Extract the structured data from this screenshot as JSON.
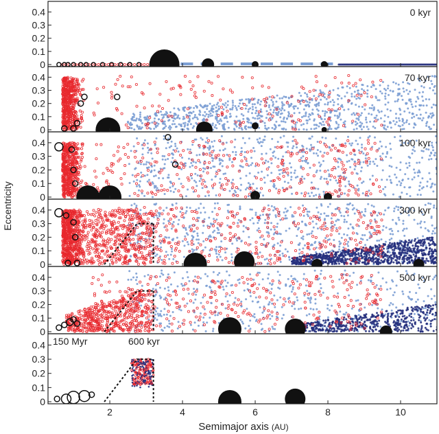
{
  "chart_data": {
    "type": "scatter",
    "xlabel": "Semimajor axis",
    "xlabel_unit": "(AU)",
    "ylabel": "Eccentricity",
    "xlim": [
      0.3,
      11.0
    ],
    "xticks": [
      2,
      4,
      6,
      8,
      10
    ],
    "colors": {
      "red_population": "#e8282e",
      "light_blue_population": "#7c9fd4",
      "dark_blue_population": "#26307d",
      "planets": "#111111",
      "open_circle": "#111111",
      "dashed_boundary": "#111111"
    },
    "panels": [
      {
        "label": "0 kyr",
        "ylim": [
          0,
          0.47
        ],
        "yticks": [
          0,
          0.1,
          0.2,
          0.3,
          0.4
        ],
        "planets": [
          {
            "a": 3.5,
            "e": 0.0,
            "size": 22
          },
          {
            "a": 4.7,
            "e": 0.0,
            "size": 9
          },
          {
            "a": 6.0,
            "e": 0.0,
            "size": 5
          },
          {
            "a": 7.9,
            "e": 0.0,
            "size": 5
          }
        ],
        "open_circles": [
          {
            "a": 0.6,
            "e": 0.0,
            "r": 3
          },
          {
            "a": 0.75,
            "e": 0.0,
            "r": 3
          },
          {
            "a": 0.85,
            "e": 0.0,
            "r": 3
          },
          {
            "a": 1.0,
            "e": 0.0,
            "r": 3
          },
          {
            "a": 1.2,
            "e": 0.0,
            "r": 3
          },
          {
            "a": 1.35,
            "e": 0.0,
            "r": 3
          },
          {
            "a": 1.55,
            "e": 0.0,
            "r": 3
          },
          {
            "a": 1.8,
            "e": 0.0,
            "r": 3
          },
          {
            "a": 2.05,
            "e": 0.0,
            "r": 3
          },
          {
            "a": 2.3,
            "e": 0.0,
            "r": 3
          },
          {
            "a": 2.55,
            "e": 0.0,
            "r": 3
          },
          {
            "a": 2.8,
            "e": 0.0,
            "r": 3
          }
        ],
        "dashed_boundary": false
      },
      {
        "label": "70 kyr",
        "ylim": [
          0,
          0.47
        ],
        "yticks": [
          0,
          0.1,
          0.2,
          0.3,
          0.4
        ],
        "planets": [
          {
            "a": 1.95,
            "e": 0.0,
            "size": 18
          },
          {
            "a": 4.6,
            "e": 0.0,
            "size": 12
          },
          {
            "a": 6.0,
            "e": 0.03,
            "size": 5
          },
          {
            "a": 7.9,
            "e": 0.0,
            "size": 4
          }
        ],
        "open_circles": [
          {
            "a": 0.75,
            "e": 0.01,
            "r": 4
          },
          {
            "a": 1.0,
            "e": 0.01,
            "r": 4
          },
          {
            "a": 1.1,
            "e": 0.05,
            "r": 4
          },
          {
            "a": 1.2,
            "e": 0.2,
            "r": 4
          },
          {
            "a": 1.3,
            "e": 0.25,
            "r": 4
          },
          {
            "a": 2.2,
            "e": 0.25,
            "r": 4
          }
        ],
        "dashed_boundary": false
      },
      {
        "label": "100 kyr",
        "ylim": [
          0,
          0.47
        ],
        "yticks": [
          0,
          0.1,
          0.2,
          0.3,
          0.4
        ],
        "planets": [
          {
            "a": 1.4,
            "e": 0.0,
            "size": 17
          },
          {
            "a": 2.0,
            "e": 0.0,
            "size": 17
          },
          {
            "a": 6.0,
            "e": 0.01,
            "size": 7
          },
          {
            "a": 8.0,
            "e": 0.0,
            "size": 6
          }
        ],
        "open_circles": [
          {
            "a": 0.6,
            "e": 0.37,
            "r": 6
          },
          {
            "a": 0.95,
            "e": 0.35,
            "r": 4
          },
          {
            "a": 1.0,
            "e": 0.2,
            "r": 4
          },
          {
            "a": 1.05,
            "e": 0.1,
            "r": 4
          },
          {
            "a": 3.6,
            "e": 0.44,
            "r": 4
          },
          {
            "a": 3.8,
            "e": 0.24,
            "r": 4
          }
        ],
        "dashed_boundary": false
      },
      {
        "label": "300 kyr",
        "ylim": [
          0,
          0.47
        ],
        "yticks": [
          0,
          0.1,
          0.2,
          0.3,
          0.4
        ],
        "planets": [
          {
            "a": 4.35,
            "e": 0.0,
            "size": 17
          },
          {
            "a": 5.7,
            "e": 0.02,
            "size": 15
          },
          {
            "a": 7.7,
            "e": 0.0,
            "size": 8
          },
          {
            "a": 10.5,
            "e": 0.0,
            "size": 8
          }
        ],
        "open_circles": [
          {
            "a": 0.6,
            "e": 0.38,
            "r": 6
          },
          {
            "a": 0.8,
            "e": 0.36,
            "r": 4
          },
          {
            "a": 1.0,
            "e": 0.31,
            "r": 4
          },
          {
            "a": 1.05,
            "e": 0.2,
            "r": 4
          },
          {
            "a": 0.85,
            "e": 0.01,
            "r": 4
          },
          {
            "a": 1.1,
            "e": 0.01,
            "r": 4
          }
        ],
        "dashed_boundary": true
      },
      {
        "label": "500 kyr",
        "ylim": [
          0,
          0.47
        ],
        "yticks": [
          0,
          0.1,
          0.2,
          0.3,
          0.4
        ],
        "planets": [
          {
            "a": 5.3,
            "e": 0.02,
            "size": 17
          },
          {
            "a": 7.1,
            "e": 0.02,
            "size": 15
          },
          {
            "a": 9.6,
            "e": 0.0,
            "size": 9
          }
        ],
        "open_circles": [
          {
            "a": 0.6,
            "e": 0.03,
            "r": 4
          },
          {
            "a": 0.75,
            "e": 0.05,
            "r": 4
          },
          {
            "a": 0.9,
            "e": 0.07,
            "r": 5
          },
          {
            "a": 1.0,
            "e": 0.09,
            "r": 4
          },
          {
            "a": 1.1,
            "e": 0.06,
            "r": 4
          }
        ],
        "dashed_boundary": true
      },
      {
        "label": "150 Myr",
        "secondary_label": "600 kyr",
        "ylim": [
          0,
          0.47
        ],
        "yticks": [
          0,
          0.1,
          0.2,
          0.3,
          0.4
        ],
        "planets": [
          {
            "a": 5.3,
            "e": 0.0,
            "size": 17
          },
          {
            "a": 7.1,
            "e": 0.02,
            "size": 15
          }
        ],
        "open_circles": [
          {
            "a": 0.55,
            "e": 0.02,
            "r": 4
          },
          {
            "a": 0.8,
            "e": 0.02,
            "r": 7
          },
          {
            "a": 1.0,
            "e": 0.03,
            "r": 9
          },
          {
            "a": 1.3,
            "e": 0.04,
            "r": 8
          },
          {
            "a": 1.5,
            "e": 0.05,
            "r": 4
          }
        ],
        "dashed_boundary": true
      }
    ]
  }
}
